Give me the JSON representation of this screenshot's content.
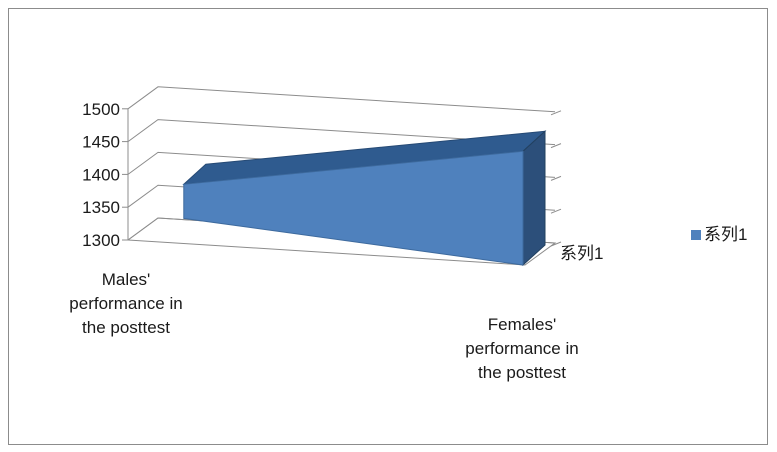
{
  "chart_data": {
    "type": "area",
    "style": "3d",
    "categories": [
      "Males' performance in the posttest",
      "Females' performance in the posttest"
    ],
    "category_lines": [
      [
        "Males'",
        "performance in",
        "the posttest"
      ],
      [
        "Females'",
        "performance in",
        "the  posttest"
      ]
    ],
    "series": [
      {
        "name": "系列1",
        "values": [
          1380,
          1452
        ],
        "color": "#4f81bd"
      }
    ],
    "depth_axis_label": "系列1",
    "ylim": [
      1300,
      1500
    ],
    "yticks": [
      1300,
      1350,
      1400,
      1450,
      1500
    ],
    "grid": true,
    "legend": {
      "position": "right",
      "entries": [
        "系列1"
      ]
    }
  }
}
